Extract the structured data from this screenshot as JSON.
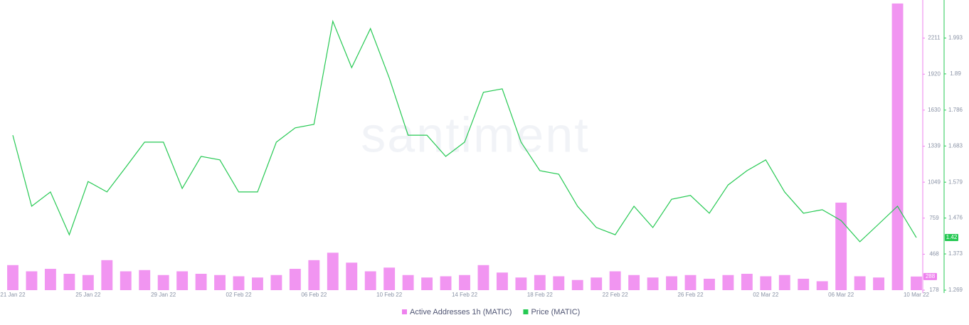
{
  "chart_data": {
    "type": "combo",
    "watermark": "santiment",
    "x": [
      "21 Jan 22",
      "22 Jan 22",
      "23 Jan 22",
      "24 Jan 22",
      "25 Jan 22",
      "26 Jan 22",
      "27 Jan 22",
      "28 Jan 22",
      "29 Jan 22",
      "30 Jan 22",
      "31 Jan 22",
      "01 Feb 22",
      "02 Feb 22",
      "03 Feb 22",
      "04 Feb 22",
      "05 Feb 22",
      "06 Feb 22",
      "07 Feb 22",
      "08 Feb 22",
      "09 Feb 22",
      "10 Feb 22",
      "11 Feb 22",
      "12 Feb 22",
      "13 Feb 22",
      "14 Feb 22",
      "15 Feb 22",
      "16 Feb 22",
      "17 Feb 22",
      "18 Feb 22",
      "19 Feb 22",
      "20 Feb 22",
      "21 Feb 22",
      "22 Feb 22",
      "23 Feb 22",
      "24 Feb 22",
      "25 Feb 22",
      "26 Feb 22",
      "27 Feb 22",
      "28 Feb 22",
      "01 Mar 22",
      "02 Mar 22",
      "03 Mar 22",
      "04 Mar 22",
      "05 Mar 22",
      "06 Mar 22",
      "07 Mar 22",
      "08 Mar 22",
      "09 Mar 22",
      "10 Mar 22"
    ],
    "xticks": [
      "21 Jan 22",
      "25 Jan 22",
      "29 Jan 22",
      "02 Feb 22",
      "06 Feb 22",
      "10 Feb 22",
      "14 Feb 22",
      "18 Feb 22",
      "22 Feb 22",
      "26 Feb 22",
      "02 Mar 22",
      "06 Mar 22",
      "10 Mar 22"
    ],
    "ylim": [
      178,
      2501
    ],
    "yticks": [
      178,
      468,
      759,
      1049,
      1339,
      1630,
      1920,
      2211
    ],
    "y2lim": [
      1.269,
      2.096
    ],
    "y2ticks": [
      1.269,
      1.373,
      1.476,
      1.579,
      1.683,
      1.786,
      1.89,
      1.993
    ],
    "series": [
      {
        "name": "Active Addresses 1h (MATIC)",
        "type": "bar",
        "color": "#ee82ee",
        "axis": "y",
        "values": [
          380,
          330,
          350,
          310,
          300,
          420,
          330,
          340,
          300,
          330,
          310,
          300,
          290,
          280,
          300,
          350,
          420,
          480,
          400,
          330,
          360,
          300,
          280,
          290,
          300,
          380,
          320,
          280,
          300,
          290,
          260,
          280,
          330,
          300,
          280,
          290,
          300,
          270,
          300,
          310,
          290,
          300,
          270,
          250,
          884,
          290,
          280,
          2490,
          288
        ]
      },
      {
        "name": "Price (MATIC)",
        "type": "line",
        "color": "#26c953",
        "axis": "y2",
        "values": [
          1.714,
          1.51,
          1.551,
          1.428,
          1.581,
          1.551,
          1.622,
          1.694,
          1.694,
          1.561,
          1.653,
          1.643,
          1.551,
          1.551,
          1.694,
          1.735,
          1.745,
          2.041,
          1.908,
          2.02,
          1.878,
          1.714,
          1.714,
          1.653,
          1.694,
          1.837,
          1.847,
          1.694,
          1.612,
          1.602,
          1.51,
          1.449,
          1.428,
          1.51,
          1.449,
          1.53,
          1.541,
          1.49,
          1.571,
          1.612,
          1.643,
          1.551,
          1.49,
          1.5,
          1.469,
          1.408,
          1.459,
          1.51,
          1.42
        ]
      }
    ]
  }
}
